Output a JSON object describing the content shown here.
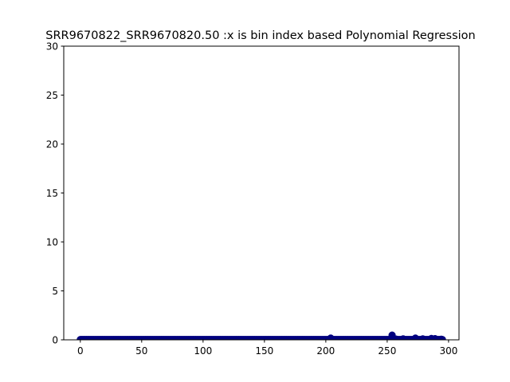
{
  "chart_data": {
    "type": "scatter",
    "title": "SRR9670822_SRR9670820.50 :x is bin index based Polynomial Regression",
    "xlabel": "",
    "ylabel": "",
    "xlim": [
      -13.5,
      308.5
    ],
    "ylim": [
      0,
      30
    ],
    "xticks": [
      0,
      50,
      100,
      150,
      200,
      250,
      300
    ],
    "yticks": [
      0,
      5,
      10,
      15,
      20,
      25,
      30
    ],
    "grid": false,
    "marker_color": "#00007f",
    "x_min": 0,
    "x_max": 295,
    "baseline_value": 0.03,
    "points": [
      {
        "x": 204,
        "y": 0.18
      },
      {
        "x": 254,
        "y": 0.48
      },
      {
        "x": 257,
        "y": 0.08
      },
      {
        "x": 263,
        "y": 0.1
      },
      {
        "x": 273,
        "y": 0.18
      },
      {
        "x": 279,
        "y": 0.1
      },
      {
        "x": 286,
        "y": 0.14
      },
      {
        "x": 289,
        "y": 0.12
      },
      {
        "x": 294,
        "y": 0.06
      }
    ]
  }
}
